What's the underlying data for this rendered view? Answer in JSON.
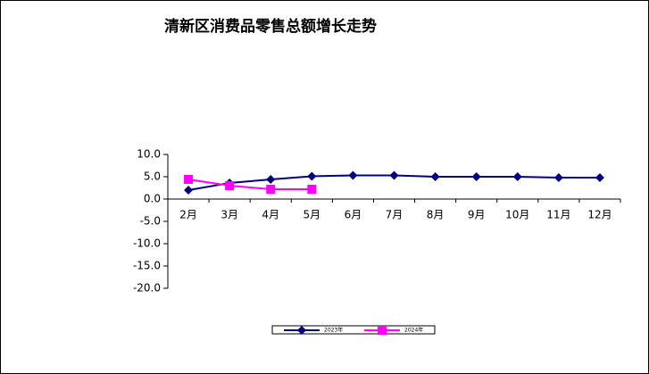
{
  "chart_data": {
    "type": "line",
    "title": "清新区消费品零售总额增长走势",
    "categories": [
      "2月",
      "3月",
      "4月",
      "5月",
      "6月",
      "7月",
      "8月",
      "9月",
      "10月",
      "11月",
      "12月"
    ],
    "series": [
      {
        "name": "2023年",
        "color": "#000080",
        "values": [
          2.0,
          3.6,
          4.4,
          5.1,
          5.3,
          5.3,
          5.0,
          5.0,
          5.0,
          4.8,
          4.8
        ]
      },
      {
        "name": "2024年",
        "color": "#ff00ff",
        "values": [
          4.4,
          3.0,
          2.2,
          2.2,
          null,
          null,
          null,
          null,
          null,
          null,
          null
        ]
      }
    ],
    "ylim": [
      -20,
      10
    ],
    "yticks": [
      {
        "value": 10,
        "label": "10.0"
      },
      {
        "value": 5,
        "label": "5.0"
      },
      {
        "value": 0,
        "label": "0.0"
      },
      {
        "value": -5,
        "label": "-5.0"
      },
      {
        "value": -10,
        "label": "-10.0"
      },
      {
        "value": -15,
        "label": "-15.0"
      },
      {
        "value": -20,
        "label": "-20.0"
      }
    ],
    "grid": false,
    "legend": "bottom"
  }
}
